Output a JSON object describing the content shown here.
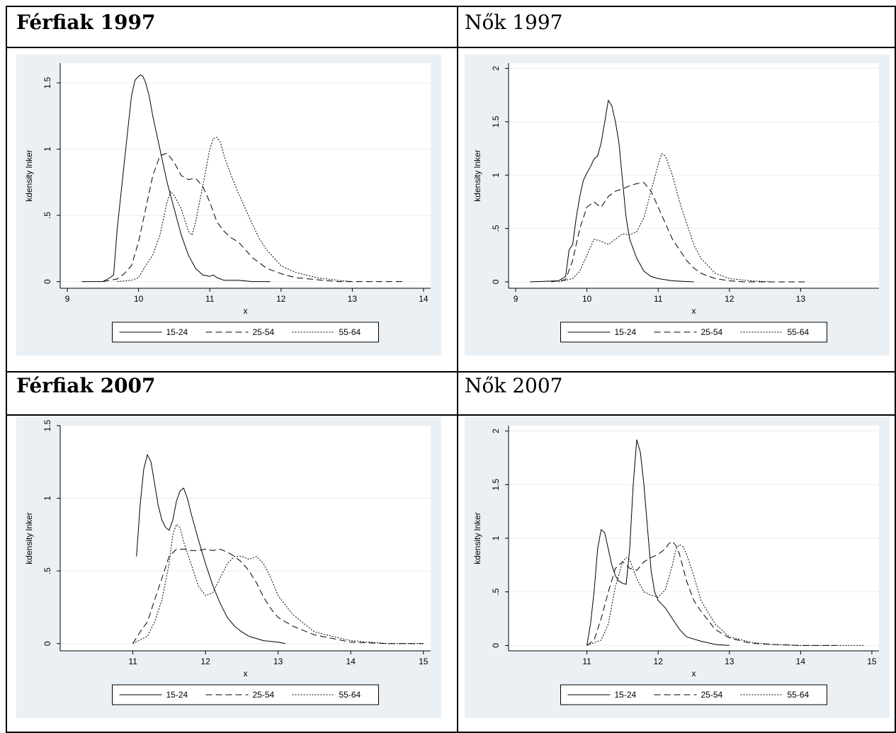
{
  "headers": [
    {
      "title": "Férfiak 1997",
      "bold": true
    },
    {
      "title": "Nők 1997",
      "bold": false
    },
    {
      "title": "Férfiak 2007",
      "bold": true
    },
    {
      "title": "Nők 2007",
      "bold": false
    }
  ],
  "colors": {
    "panel_bg": "#eaf0f4",
    "plot_bg": "#ffffff",
    "grid": "#e8eef2",
    "line": "#000000"
  },
  "chart_data": [
    {
      "type": "line",
      "title": "",
      "xlabel": "x",
      "ylabel": "kdensity lnker",
      "xlim": [
        8.9,
        14.1
      ],
      "ylim": [
        -0.05,
        1.65
      ],
      "xticks": [
        9,
        10,
        11,
        12,
        13,
        14
      ],
      "yticks": [
        0,
        0.5,
        1,
        1.5
      ],
      "ytick_labels": [
        "0",
        ".5",
        "1",
        "1.5"
      ],
      "grid": true,
      "legend": "bottom",
      "series": [
        {
          "name": "15-24",
          "style": "solid",
          "x": [
            9.2,
            9.5,
            9.6,
            9.65,
            9.7,
            9.75,
            9.8,
            9.85,
            9.9,
            9.95,
            10.0,
            10.03,
            10.06,
            10.1,
            10.15,
            10.2,
            10.3,
            10.4,
            10.5,
            10.6,
            10.7,
            10.8,
            10.9,
            11.0,
            11.05,
            11.1,
            11.2,
            11.4,
            11.6,
            11.85
          ],
          "y": [
            0.0,
            0.0,
            0.03,
            0.05,
            0.4,
            0.65,
            0.9,
            1.15,
            1.4,
            1.52,
            1.55,
            1.56,
            1.55,
            1.5,
            1.4,
            1.25,
            1.0,
            0.75,
            0.55,
            0.35,
            0.2,
            0.1,
            0.05,
            0.04,
            0.05,
            0.03,
            0.01,
            0.01,
            0.0,
            0.0
          ]
        },
        {
          "name": "25-54",
          "style": "dashed",
          "x": [
            9.5,
            9.7,
            9.8,
            9.9,
            10.0,
            10.1,
            10.2,
            10.3,
            10.4,
            10.5,
            10.6,
            10.7,
            10.8,
            10.9,
            11.0,
            11.1,
            11.2,
            11.3,
            11.4,
            11.5,
            11.6,
            11.8,
            12.0,
            12.2,
            12.4,
            12.6,
            12.8,
            13.0,
            13.5,
            13.75
          ],
          "y": [
            0.0,
            0.02,
            0.06,
            0.12,
            0.3,
            0.55,
            0.8,
            0.95,
            0.97,
            0.9,
            0.8,
            0.77,
            0.78,
            0.72,
            0.6,
            0.45,
            0.38,
            0.33,
            0.3,
            0.24,
            0.18,
            0.1,
            0.06,
            0.03,
            0.02,
            0.01,
            0.0,
            0.0,
            0.0,
            0.0
          ]
        },
        {
          "name": "55-64",
          "style": "dotted",
          "x": [
            9.7,
            9.9,
            10.0,
            10.1,
            10.2,
            10.3,
            10.4,
            10.45,
            10.5,
            10.6,
            10.7,
            10.75,
            10.8,
            10.9,
            11.0,
            11.05,
            11.1,
            11.15,
            11.2,
            11.3,
            11.4,
            11.5,
            11.6,
            11.7,
            11.8,
            12.0,
            12.2,
            12.5,
            12.8,
            13.0
          ],
          "y": [
            0.0,
            0.01,
            0.03,
            0.12,
            0.2,
            0.35,
            0.6,
            0.68,
            0.65,
            0.55,
            0.38,
            0.35,
            0.45,
            0.72,
            1.0,
            1.08,
            1.09,
            1.05,
            0.95,
            0.8,
            0.67,
            0.55,
            0.43,
            0.32,
            0.24,
            0.12,
            0.07,
            0.03,
            0.01,
            0.0
          ]
        }
      ]
    },
    {
      "type": "line",
      "title": "",
      "xlabel": "x",
      "ylabel": "kdensity lnker",
      "xlim": [
        8.9,
        14.1
      ],
      "ylim": [
        -0.06,
        2.05
      ],
      "xticks": [
        9,
        10,
        11,
        12,
        13
      ],
      "yticks": [
        0,
        0.5,
        1,
        1.5,
        2
      ],
      "ytick_labels": [
        "0",
        ".5",
        "1",
        "1.5",
        "2"
      ],
      "grid": true,
      "legend": "bottom",
      "series": [
        {
          "name": "15-24",
          "style": "solid",
          "x": [
            9.2,
            9.6,
            9.7,
            9.75,
            9.8,
            9.85,
            9.9,
            9.95,
            10.0,
            10.05,
            10.1,
            10.15,
            10.2,
            10.25,
            10.3,
            10.35,
            10.4,
            10.45,
            10.5,
            10.55,
            10.6,
            10.7,
            10.8,
            10.9,
            11.0,
            11.2,
            11.5
          ],
          "y": [
            0.0,
            0.01,
            0.05,
            0.3,
            0.35,
            0.6,
            0.8,
            0.95,
            1.02,
            1.08,
            1.15,
            1.18,
            1.3,
            1.5,
            1.7,
            1.65,
            1.5,
            1.3,
            0.95,
            0.6,
            0.4,
            0.22,
            0.1,
            0.05,
            0.03,
            0.01,
            0.0
          ]
        },
        {
          "name": "25-54",
          "style": "dashed",
          "x": [
            9.5,
            9.7,
            9.8,
            9.9,
            10.0,
            10.1,
            10.15,
            10.2,
            10.3,
            10.4,
            10.5,
            10.6,
            10.7,
            10.8,
            10.9,
            11.0,
            11.1,
            11.2,
            11.3,
            11.4,
            11.5,
            11.6,
            11.8,
            12.0,
            12.2,
            12.5,
            13.1
          ],
          "y": [
            0.0,
            0.02,
            0.2,
            0.5,
            0.7,
            0.75,
            0.72,
            0.7,
            0.8,
            0.85,
            0.87,
            0.9,
            0.92,
            0.93,
            0.85,
            0.7,
            0.55,
            0.4,
            0.3,
            0.2,
            0.13,
            0.08,
            0.03,
            0.01,
            0.0,
            0.0,
            0.0
          ]
        },
        {
          "name": "55-64",
          "style": "dotted",
          "x": [
            9.6,
            9.8,
            9.9,
            10.0,
            10.1,
            10.2,
            10.3,
            10.4,
            10.5,
            10.6,
            10.7,
            10.8,
            10.9,
            11.0,
            11.05,
            11.1,
            11.2,
            11.3,
            11.4,
            11.5,
            11.6,
            11.8,
            12.0,
            12.3,
            12.6
          ],
          "y": [
            0.0,
            0.03,
            0.1,
            0.25,
            0.4,
            0.38,
            0.35,
            0.4,
            0.45,
            0.44,
            0.47,
            0.6,
            0.85,
            1.1,
            1.2,
            1.18,
            1.0,
            0.75,
            0.55,
            0.35,
            0.22,
            0.08,
            0.03,
            0.01,
            0.0
          ]
        }
      ]
    },
    {
      "type": "line",
      "title": "",
      "xlabel": "x",
      "ylabel": "kdensity lnker",
      "xlim": [
        10.0,
        15.1
      ],
      "ylim": [
        -0.05,
        1.5
      ],
      "xticks": [
        11,
        12,
        13,
        14,
        15
      ],
      "yticks": [
        0,
        0.5,
        1,
        1.5
      ],
      "ytick_labels": [
        "0",
        ".5",
        "1",
        "1.5"
      ],
      "grid": true,
      "legend": "bottom",
      "series": [
        {
          "name": "15-24",
          "style": "solid",
          "x": [
            11.05,
            11.1,
            11.15,
            11.2,
            11.25,
            11.3,
            11.35,
            11.4,
            11.45,
            11.5,
            11.55,
            11.6,
            11.65,
            11.7,
            11.75,
            11.8,
            11.9,
            12.0,
            12.1,
            12.2,
            12.3,
            12.4,
            12.5,
            12.6,
            12.8,
            13.0,
            13.1
          ],
          "y": [
            0.6,
            0.95,
            1.2,
            1.3,
            1.25,
            1.1,
            0.95,
            0.85,
            0.8,
            0.78,
            0.85,
            0.98,
            1.05,
            1.07,
            1.0,
            0.9,
            0.72,
            0.55,
            0.4,
            0.28,
            0.18,
            0.12,
            0.08,
            0.05,
            0.02,
            0.01,
            0.0
          ]
        },
        {
          "name": "25-54",
          "style": "dashed",
          "x": [
            11.0,
            11.1,
            11.2,
            11.3,
            11.4,
            11.5,
            11.6,
            11.7,
            11.8,
            11.9,
            12.0,
            12.1,
            12.2,
            12.3,
            12.4,
            12.5,
            12.6,
            12.7,
            12.8,
            12.9,
            13.0,
            13.2,
            13.5,
            14.0,
            14.5,
            15.0
          ],
          "y": [
            0.0,
            0.08,
            0.15,
            0.3,
            0.45,
            0.6,
            0.65,
            0.65,
            0.64,
            0.64,
            0.65,
            0.64,
            0.65,
            0.63,
            0.6,
            0.56,
            0.5,
            0.42,
            0.32,
            0.24,
            0.18,
            0.12,
            0.06,
            0.01,
            0.0,
            0.0
          ]
        },
        {
          "name": "55-64",
          "style": "dotted",
          "x": [
            11.0,
            11.2,
            11.3,
            11.4,
            11.5,
            11.55,
            11.6,
            11.65,
            11.7,
            11.8,
            11.9,
            12.0,
            12.1,
            12.2,
            12.3,
            12.4,
            12.5,
            12.6,
            12.7,
            12.8,
            12.9,
            13.0,
            13.2,
            13.5,
            14.0,
            14.5,
            15.0
          ],
          "y": [
            0.0,
            0.05,
            0.15,
            0.3,
            0.55,
            0.75,
            0.82,
            0.8,
            0.7,
            0.55,
            0.4,
            0.33,
            0.35,
            0.45,
            0.55,
            0.6,
            0.6,
            0.58,
            0.6,
            0.55,
            0.45,
            0.33,
            0.2,
            0.08,
            0.02,
            0.0,
            0.0
          ]
        }
      ]
    },
    {
      "type": "line",
      "title": "",
      "xlabel": "x",
      "ylabel": "kdensity lnker",
      "xlim": [
        9.9,
        15.1
      ],
      "ylim": [
        -0.05,
        2.05
      ],
      "xticks": [
        11,
        12,
        13,
        14,
        15
      ],
      "yticks": [
        0,
        0.5,
        1,
        1.5,
        2
      ],
      "ytick_labels": [
        "0",
        ".5",
        "1",
        "1.5",
        "2"
      ],
      "grid": true,
      "legend": "bottom",
      "series": [
        {
          "name": "15-24",
          "style": "solid",
          "x": [
            11.0,
            11.05,
            11.1,
            11.15,
            11.2,
            11.25,
            11.3,
            11.35,
            11.4,
            11.45,
            11.5,
            11.55,
            11.6,
            11.65,
            11.7,
            11.75,
            11.8,
            11.85,
            11.9,
            11.95,
            12.0,
            12.1,
            12.2,
            12.3,
            12.4,
            12.6,
            12.8,
            13.0
          ],
          "y": [
            0.0,
            0.2,
            0.5,
            0.9,
            1.08,
            1.05,
            0.9,
            0.75,
            0.65,
            0.6,
            0.58,
            0.57,
            0.9,
            1.5,
            1.92,
            1.8,
            1.5,
            1.1,
            0.7,
            0.5,
            0.42,
            0.35,
            0.25,
            0.15,
            0.08,
            0.04,
            0.01,
            0.0
          ]
        },
        {
          "name": "25-54",
          "style": "dashed",
          "x": [
            11.0,
            11.1,
            11.2,
            11.3,
            11.4,
            11.5,
            11.6,
            11.7,
            11.8,
            11.9,
            12.0,
            12.1,
            12.15,
            12.2,
            12.25,
            12.3,
            12.4,
            12.5,
            12.6,
            12.8,
            13.0,
            13.3,
            13.6,
            14.0,
            14.5
          ],
          "y": [
            0.0,
            0.05,
            0.25,
            0.5,
            0.72,
            0.78,
            0.72,
            0.7,
            0.78,
            0.82,
            0.85,
            0.9,
            0.95,
            0.97,
            0.93,
            0.85,
            0.6,
            0.42,
            0.32,
            0.15,
            0.07,
            0.02,
            0.01,
            0.0,
            0.0
          ]
        },
        {
          "name": "55-64",
          "style": "dotted",
          "x": [
            11.0,
            11.2,
            11.3,
            11.4,
            11.5,
            11.55,
            11.6,
            11.7,
            11.8,
            11.9,
            12.0,
            12.1,
            12.2,
            12.25,
            12.3,
            12.35,
            12.4,
            12.5,
            12.6,
            12.8,
            13.0,
            13.3,
            13.6,
            14.0,
            14.5,
            14.9
          ],
          "y": [
            0.0,
            0.05,
            0.2,
            0.55,
            0.78,
            0.82,
            0.8,
            0.62,
            0.5,
            0.47,
            0.45,
            0.52,
            0.75,
            0.9,
            0.94,
            0.92,
            0.85,
            0.65,
            0.42,
            0.2,
            0.08,
            0.03,
            0.01,
            0.0,
            0.0,
            0.0
          ]
        }
      ]
    }
  ]
}
